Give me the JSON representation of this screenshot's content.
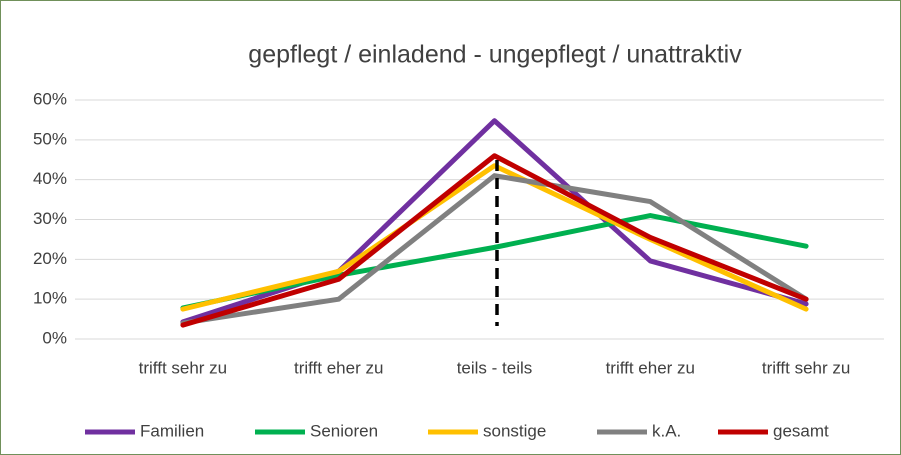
{
  "chart_data": {
    "type": "line",
    "title": "gepflegt / einladend - ungepflegt / unattraktiv",
    "categories": [
      "trifft sehr zu",
      "trifft eher zu",
      "teils - teils",
      "trifft eher zu",
      "trifft sehr zu"
    ],
    "series": [
      {
        "name": "Familien",
        "color": "#7030a0",
        "values": [
          4.3,
          17,
          54.8,
          19.6,
          8.8
        ]
      },
      {
        "name": "Senioren",
        "color": "#00b050",
        "values": [
          7.8,
          16,
          23,
          31,
          23.3
        ]
      },
      {
        "name": "sonstige",
        "color": "#ffc000",
        "values": [
          7.5,
          17,
          43.5,
          25,
          7.5
        ]
      },
      {
        "name": "k.A.",
        "color": "#808080",
        "values": [
          4,
          10,
          41,
          34.5,
          10
        ]
      },
      {
        "name": "gesamt",
        "color": "#c00000",
        "values": [
          3.5,
          15,
          46,
          25.5,
          10
        ]
      }
    ],
    "ylim": [
      0,
      60
    ],
    "yticks": [
      {
        "value": 0,
        "label": "0%"
      },
      {
        "value": 10,
        "label": "10%"
      },
      {
        "value": 20,
        "label": "20%"
      },
      {
        "value": 30,
        "label": "30%"
      },
      {
        "value": 40,
        "label": "40%"
      },
      {
        "value": 50,
        "label": "50%"
      },
      {
        "value": 60,
        "label": "60%"
      }
    ],
    "grid": true,
    "legend": "bottom"
  }
}
